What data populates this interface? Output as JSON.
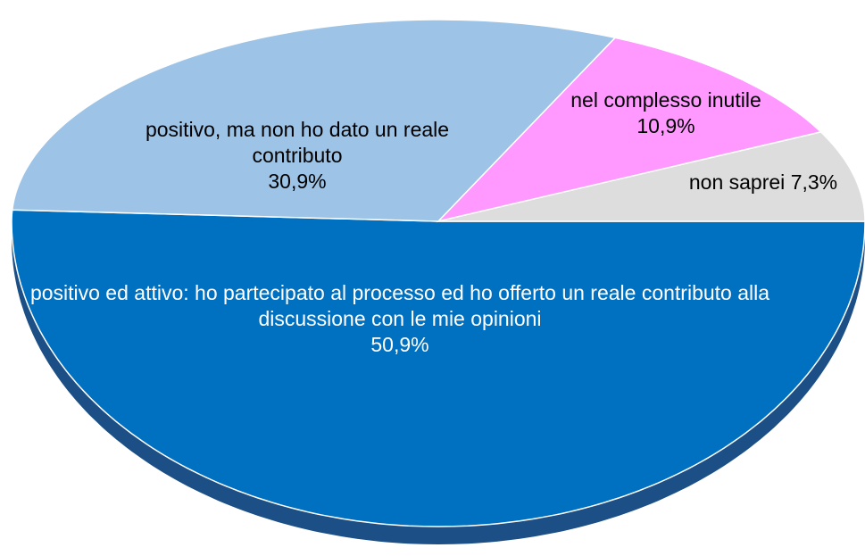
{
  "chart_data": {
    "type": "pie",
    "categories": [
      "positivo ed attivo: ho partecipato al processo ed ho offerto un reale contributo alla discussione con le mie opinioni",
      "positivo, ma non ho dato un reale contributo",
      "nel complesso inutile",
      "non saprei"
    ],
    "values": [
      50.9,
      30.9,
      10.9,
      7.3
    ],
    "value_labels": [
      "50,9%",
      "30,9%",
      "10,9%",
      "7,3%"
    ],
    "colors": [
      "#0070c0",
      "#9dc3e6",
      "#ff99ff",
      "#dddddd"
    ]
  }
}
